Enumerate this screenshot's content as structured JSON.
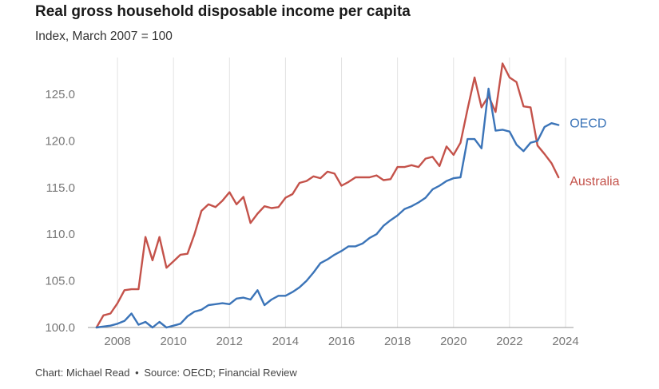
{
  "header": {
    "title": "Real gross household disposable income per capita",
    "subtitle": "Index, March 2007 = 100"
  },
  "footer": {
    "chart_credit": "Chart: Michael Read",
    "separator": "•",
    "source": "Source: OECD; Financial Review"
  },
  "colors": {
    "oecd": "#3b74b8",
    "australia": "#c4524a",
    "grid": "#e2e2e2",
    "axis": "#999999"
  },
  "chart_data": {
    "type": "line",
    "title": "Real gross household disposable income per capita",
    "subtitle": "Index, March 2007 = 100",
    "xlabel": "",
    "ylabel": "",
    "xlim": [
      2007,
      2024.1
    ],
    "ylim": [
      100,
      128.5
    ],
    "x_ticks": [
      2008,
      2010,
      2012,
      2014,
      2016,
      2018,
      2020,
      2022,
      2024
    ],
    "y_ticks": [
      100.0,
      105.0,
      110.0,
      115.0,
      120.0,
      125.0
    ],
    "x_tick_labels": [
      "2008",
      "2010",
      "2012",
      "2014",
      "2016",
      "2018",
      "2020",
      "2022",
      "2024"
    ],
    "y_tick_labels": [
      "100.0",
      "105.0",
      "110.0",
      "115.0",
      "120.0",
      "125.0"
    ],
    "grid": "vertical",
    "legend": "end-of-line labels",
    "series": [
      {
        "name": "OECD",
        "color": "#3b74b8",
        "points": [
          [
            2007.25,
            100.0
          ],
          [
            2007.5,
            100.1
          ],
          [
            2007.75,
            100.2
          ],
          [
            2008.0,
            100.4
          ],
          [
            2008.25,
            100.7
          ],
          [
            2008.5,
            101.5
          ],
          [
            2008.75,
            100.3
          ],
          [
            2009.0,
            100.6
          ],
          [
            2009.25,
            100.0
          ],
          [
            2009.5,
            100.6
          ],
          [
            2009.75,
            100.0
          ],
          [
            2010.0,
            100.2
          ],
          [
            2010.25,
            100.4
          ],
          [
            2010.5,
            101.2
          ],
          [
            2010.75,
            101.7
          ],
          [
            2011.0,
            101.9
          ],
          [
            2011.25,
            102.4
          ],
          [
            2011.5,
            102.5
          ],
          [
            2011.75,
            102.6
          ],
          [
            2012.0,
            102.5
          ],
          [
            2012.25,
            103.1
          ],
          [
            2012.5,
            103.2
          ],
          [
            2012.75,
            103.0
          ],
          [
            2013.0,
            104.0
          ],
          [
            2013.25,
            102.4
          ],
          [
            2013.5,
            103.0
          ],
          [
            2013.75,
            103.4
          ],
          [
            2014.0,
            103.4
          ],
          [
            2014.25,
            103.8
          ],
          [
            2014.5,
            104.3
          ],
          [
            2014.75,
            105.0
          ],
          [
            2015.0,
            105.9
          ],
          [
            2015.25,
            106.9
          ],
          [
            2015.5,
            107.3
          ],
          [
            2015.75,
            107.8
          ],
          [
            2016.0,
            108.2
          ],
          [
            2016.25,
            108.7
          ],
          [
            2016.5,
            108.7
          ],
          [
            2016.75,
            109.0
          ],
          [
            2017.0,
            109.6
          ],
          [
            2017.25,
            110.0
          ],
          [
            2017.5,
            110.9
          ],
          [
            2017.75,
            111.5
          ],
          [
            2018.0,
            112.0
          ],
          [
            2018.25,
            112.7
          ],
          [
            2018.5,
            113.0
          ],
          [
            2018.75,
            113.4
          ],
          [
            2019.0,
            113.9
          ],
          [
            2019.25,
            114.8
          ],
          [
            2019.5,
            115.2
          ],
          [
            2019.75,
            115.7
          ],
          [
            2020.0,
            116.0
          ],
          [
            2020.25,
            116.1
          ],
          [
            2020.5,
            120.2
          ],
          [
            2020.75,
            120.2
          ],
          [
            2021.0,
            119.2
          ],
          [
            2021.25,
            125.6
          ],
          [
            2021.5,
            121.1
          ],
          [
            2021.75,
            121.2
          ],
          [
            2022.0,
            121.0
          ],
          [
            2022.25,
            119.6
          ],
          [
            2022.5,
            118.9
          ],
          [
            2022.75,
            119.8
          ],
          [
            2023.0,
            120.0
          ],
          [
            2023.25,
            121.5
          ],
          [
            2023.5,
            121.9
          ],
          [
            2023.75,
            121.7
          ]
        ]
      },
      {
        "name": "Australia",
        "color": "#c4524a",
        "points": [
          [
            2007.25,
            100.0
          ],
          [
            2007.5,
            101.3
          ],
          [
            2007.75,
            101.5
          ],
          [
            2008.0,
            102.6
          ],
          [
            2008.25,
            104.0
          ],
          [
            2008.5,
            104.1
          ],
          [
            2008.75,
            104.1
          ],
          [
            2009.0,
            109.7
          ],
          [
            2009.25,
            107.2
          ],
          [
            2009.5,
            109.7
          ],
          [
            2009.75,
            106.4
          ],
          [
            2010.0,
            107.1
          ],
          [
            2010.25,
            107.8
          ],
          [
            2010.5,
            107.9
          ],
          [
            2010.75,
            110.0
          ],
          [
            2011.0,
            112.5
          ],
          [
            2011.25,
            113.2
          ],
          [
            2011.5,
            112.9
          ],
          [
            2011.75,
            113.6
          ],
          [
            2012.0,
            114.5
          ],
          [
            2012.25,
            113.2
          ],
          [
            2012.5,
            114.0
          ],
          [
            2012.75,
            111.2
          ],
          [
            2013.0,
            112.2
          ],
          [
            2013.25,
            113.0
          ],
          [
            2013.5,
            112.8
          ],
          [
            2013.75,
            112.9
          ],
          [
            2014.0,
            113.9
          ],
          [
            2014.25,
            114.3
          ],
          [
            2014.5,
            115.5
          ],
          [
            2014.75,
            115.7
          ],
          [
            2015.0,
            116.2
          ],
          [
            2015.25,
            116.0
          ],
          [
            2015.5,
            116.7
          ],
          [
            2015.75,
            116.5
          ],
          [
            2016.0,
            115.2
          ],
          [
            2016.25,
            115.6
          ],
          [
            2016.5,
            116.1
          ],
          [
            2016.75,
            116.1
          ],
          [
            2017.0,
            116.1
          ],
          [
            2017.25,
            116.3
          ],
          [
            2017.5,
            115.8
          ],
          [
            2017.75,
            115.9
          ],
          [
            2018.0,
            117.2
          ],
          [
            2018.25,
            117.2
          ],
          [
            2018.5,
            117.4
          ],
          [
            2018.75,
            117.2
          ],
          [
            2019.0,
            118.1
          ],
          [
            2019.25,
            118.3
          ],
          [
            2019.5,
            117.3
          ],
          [
            2019.75,
            119.4
          ],
          [
            2020.0,
            118.5
          ],
          [
            2020.25,
            119.8
          ],
          [
            2020.5,
            123.4
          ],
          [
            2020.75,
            126.8
          ],
          [
            2021.0,
            123.6
          ],
          [
            2021.25,
            124.8
          ],
          [
            2021.5,
            123.1
          ],
          [
            2021.75,
            128.3
          ],
          [
            2022.0,
            126.8
          ],
          [
            2022.25,
            126.3
          ],
          [
            2022.5,
            123.7
          ],
          [
            2022.75,
            123.6
          ],
          [
            2023.0,
            119.5
          ],
          [
            2023.25,
            118.6
          ],
          [
            2023.5,
            117.6
          ],
          [
            2023.75,
            116.1
          ]
        ]
      }
    ]
  }
}
